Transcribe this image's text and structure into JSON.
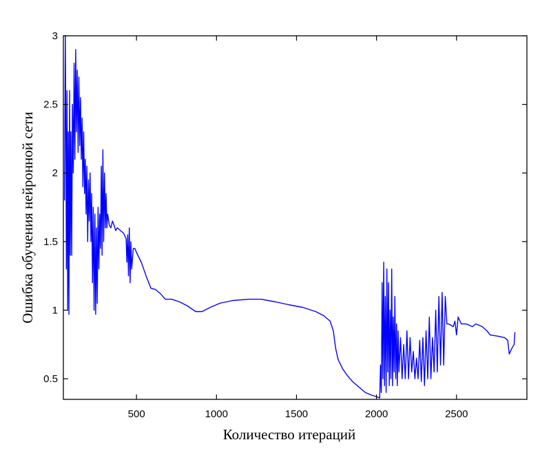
{
  "chart_data": {
    "type": "line",
    "title": "",
    "xlabel": "Количество итераций",
    "ylabel": "Ошибка обучения нейронной сети",
    "xlim": [
      43,
      2940
    ],
    "ylim": [
      0.35,
      3
    ],
    "xticks": [
      500,
      1000,
      1500,
      2000,
      2500
    ],
    "xtick_labels": [
      "500",
      "1000",
      "1500",
      "2000",
      "2500"
    ],
    "yticks": [
      0.5,
      1,
      1.5,
      2,
      2.5,
      3
    ],
    "ytick_labels": [
      "0.5",
      "1",
      "1.5",
      "2",
      "2.5",
      "3"
    ],
    "grid": false,
    "line_color": "#0000ff",
    "series": [
      {
        "x": [
          50,
          55,
          58,
          62,
          66,
          70,
          74,
          78,
          82,
          86,
          90,
          95,
          100,
          105,
          110,
          115,
          120,
          125,
          130,
          135,
          140,
          145,
          150,
          155,
          160,
          165,
          170,
          175,
          180,
          185,
          190,
          195,
          200,
          205,
          210,
          215,
          220,
          225,
          230,
          235,
          240,
          245,
          250,
          255,
          260,
          265,
          270,
          275,
          280,
          285,
          290,
          295,
          300,
          305,
          310,
          315,
          320,
          330,
          340,
          350,
          360,
          370,
          380,
          400,
          420,
          435,
          440,
          445,
          450,
          455,
          460,
          465,
          470,
          480,
          490,
          500,
          530,
          560,
          590,
          620,
          650,
          680,
          720,
          770,
          820,
          870,
          910,
          960,
          1020,
          1100,
          1200,
          1280,
          1370,
          1450,
          1540,
          1620,
          1670,
          1710,
          1730,
          1745,
          1760,
          1790,
          1820,
          1850,
          1890,
          1930,
          1970,
          2000,
          2020,
          2025,
          2030,
          2035,
          2040,
          2045,
          2050,
          2055,
          2060,
          2065,
          2070,
          2075,
          2080,
          2085,
          2090,
          2095,
          2100,
          2105,
          2110,
          2115,
          2120,
          2125,
          2130,
          2135,
          2140,
          2150,
          2160,
          2170,
          2180,
          2190,
          2200,
          2210,
          2220,
          2230,
          2240,
          2250,
          2260,
          2270,
          2280,
          2290,
          2300,
          2310,
          2320,
          2330,
          2340,
          2350,
          2360,
          2370,
          2380,
          2390,
          2400,
          2410,
          2420,
          2430,
          2440,
          2450,
          2480,
          2490,
          2500,
          2510,
          2530,
          2560,
          2600,
          2620,
          2660,
          2690,
          2710,
          2760,
          2800,
          2820,
          2830,
          2845,
          2860,
          2865
        ],
        "y": [
          1.8,
          3.0,
          2.45,
          1.3,
          2.6,
          1.0,
          2.3,
          0.97,
          2.6,
          1.4,
          2.3,
          1.4,
          2.5,
          2.0,
          2.8,
          2.1,
          2.9,
          2.3,
          2.75,
          2.15,
          2.7,
          2.2,
          2.55,
          2.1,
          2.4,
          1.9,
          2.3,
          1.85,
          2.1,
          1.7,
          2.05,
          1.5,
          1.95,
          1.65,
          2.0,
          1.5,
          1.85,
          1.2,
          1.75,
          1.0,
          1.7,
          0.97,
          1.6,
          1.05,
          1.75,
          1.3,
          1.7,
          1.45,
          2.05,
          1.4,
          2.17,
          1.5,
          2.0,
          1.6,
          1.85,
          1.6,
          1.7,
          1.62,
          1.6,
          1.65,
          1.62,
          1.58,
          1.6,
          1.58,
          1.56,
          1.52,
          1.35,
          1.55,
          1.25,
          1.6,
          1.2,
          1.5,
          1.3,
          1.45,
          1.45,
          1.42,
          1.35,
          1.25,
          1.16,
          1.15,
          1.12,
          1.08,
          1.08,
          1.06,
          1.03,
          0.99,
          0.99,
          1.02,
          1.05,
          1.07,
          1.08,
          1.08,
          1.06,
          1.04,
          1.02,
          0.99,
          0.96,
          0.92,
          0.85,
          0.72,
          0.64,
          0.57,
          0.52,
          0.48,
          0.44,
          0.4,
          0.38,
          0.37,
          0.36,
          0.6,
          0.4,
          1.2,
          0.5,
          1.35,
          0.45,
          1.1,
          0.4,
          1.3,
          0.55,
          1.2,
          0.45,
          1.0,
          0.5,
          1.3,
          0.45,
          0.95,
          0.55,
          1.1,
          0.5,
          0.9,
          0.45,
          0.85,
          0.55,
          0.8,
          0.5,
          0.75,
          0.5,
          0.85,
          0.5,
          0.8,
          0.55,
          0.7,
          0.5,
          0.65,
          0.5,
          0.78,
          0.48,
          0.8,
          0.45,
          0.85,
          0.5,
          0.95,
          0.5,
          0.8,
          0.55,
          1.0,
          0.55,
          1.1,
          0.6,
          1.13,
          0.6,
          1.1,
          0.9,
          0.9,
          0.88,
          0.92,
          0.82,
          0.95,
          0.9,
          0.9,
          0.88,
          0.9,
          0.88,
          0.85,
          0.82,
          0.81,
          0.8,
          0.78,
          0.68,
          0.72,
          0.75,
          0.84
        ]
      }
    ]
  }
}
